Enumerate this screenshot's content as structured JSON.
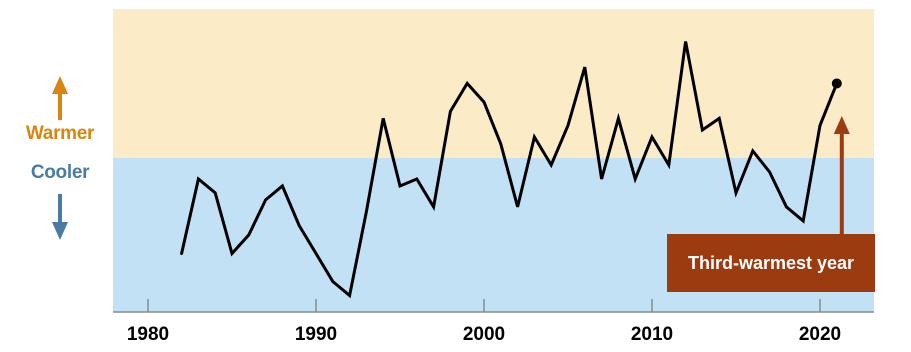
{
  "legend": {
    "warmer_label": "Warmer",
    "cooler_label": "Cooler",
    "warmer_color": "#D9860F",
    "cooler_color": "#4A7BA7"
  },
  "annotation": {
    "text": "Third-warmest year",
    "year": 2021,
    "box_color": "#9C3A10"
  },
  "colors": {
    "warm_region": "#FBEBC7",
    "cool_region": "#C2E1F5",
    "line": "#000000",
    "axis": "#8A8A8A"
  },
  "chart_data": {
    "type": "line",
    "title": "",
    "xlabel": "",
    "ylabel": "",
    "xlim": [
      1978,
      2023
    ],
    "ylim": [
      -0.7,
      0.7
    ],
    "baseline": 0,
    "x_ticks": [
      1980,
      1990,
      2000,
      2010,
      2020
    ],
    "tick_labels": [
      "1980",
      "1990",
      "2000",
      "2010",
      "2020"
    ],
    "grid": false,
    "x": [
      1982,
      1983,
      1984,
      1985,
      1986,
      1987,
      1988,
      1989,
      1990,
      1991,
      1992,
      1993,
      1994,
      1995,
      1996,
      1997,
      1998,
      1999,
      2000,
      2001,
      2002,
      2003,
      2004,
      2005,
      2006,
      2007,
      2008,
      2009,
      2010,
      2011,
      2012,
      2013,
      2014,
      2015,
      2016,
      2017,
      2018,
      2019,
      2020,
      2021
    ],
    "y": [
      -0.41,
      -0.09,
      -0.15,
      -0.41,
      -0.33,
      -0.18,
      -0.12,
      -0.29,
      -0.41,
      -0.53,
      -0.59,
      -0.23,
      0.17,
      -0.12,
      -0.09,
      -0.21,
      0.2,
      0.32,
      0.24,
      0.06,
      -0.21,
      0.09,
      -0.03,
      0.14,
      0.39,
      -0.09,
      0.17,
      -0.09,
      0.09,
      -0.03,
      0.5,
      0.12,
      0.17,
      -0.15,
      0.03,
      -0.06,
      -0.21,
      -0.27,
      0.14,
      0.32
    ]
  }
}
